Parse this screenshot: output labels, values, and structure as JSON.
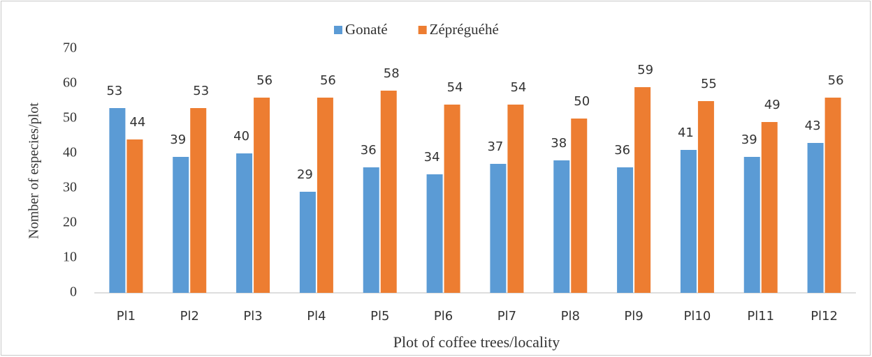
{
  "chart_data": {
    "type": "bar",
    "xlabel": "Plot of coffee trees/locality",
    "ylabel": "Nomber of especies/plot",
    "categories": [
      "Pl1",
      "Pl2",
      "Pl3",
      "Pl4",
      "Pl5",
      "Pl6",
      "Pl7",
      "Pl8",
      "Pl9",
      "Pl10",
      "Pl11",
      "Pl12"
    ],
    "series": [
      {
        "name": "Gonaté",
        "color": "#5b9bd5",
        "values": [
          53,
          39,
          40,
          29,
          36,
          34,
          37,
          38,
          36,
          41,
          39,
          43
        ]
      },
      {
        "name": "Zépréguéhé",
        "color": "#ed7d31",
        "values": [
          44,
          53,
          56,
          56,
          58,
          54,
          54,
          50,
          59,
          55,
          49,
          56
        ]
      }
    ],
    "ylim": [
      0,
      70
    ],
    "yticks": [
      0,
      10,
      20,
      30,
      40,
      50,
      60,
      70
    ],
    "grid": false,
    "legend": "top"
  }
}
